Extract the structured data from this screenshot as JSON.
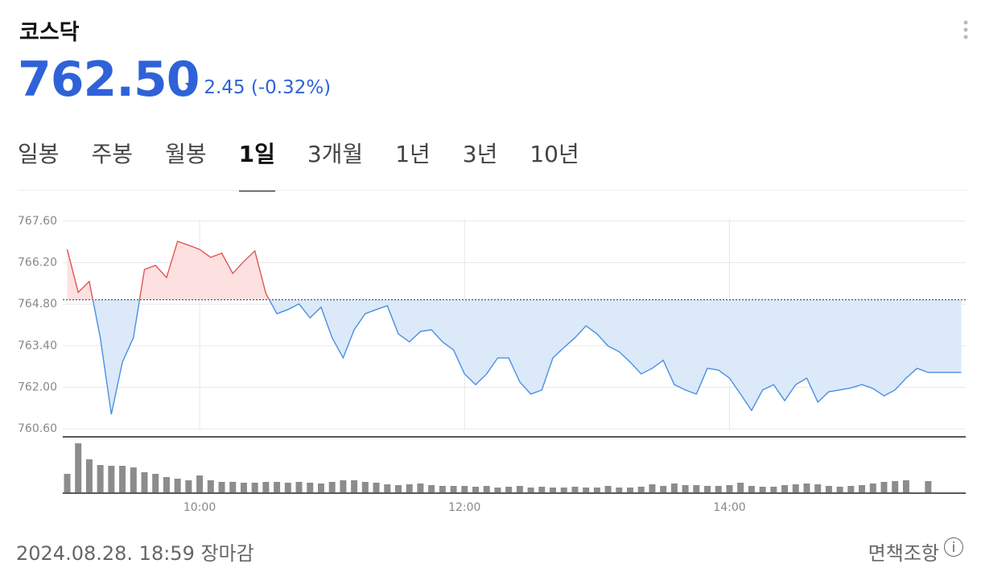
{
  "header": {
    "title": "코스닥",
    "price": "762.50",
    "change": "2.45",
    "change_pct": "(-0.32%)"
  },
  "tabs": [
    "일봉",
    "주봉",
    "월봉",
    "1일",
    "3개월",
    "1년",
    "3년",
    "10년"
  ],
  "active_tab": 3,
  "chart_data": {
    "type": "line",
    "x": [
      540,
      545,
      550,
      555,
      560,
      565,
      570,
      575,
      580,
      585,
      590,
      595,
      600,
      605,
      610,
      615,
      620,
      625,
      630,
      635,
      640,
      645,
      650,
      655,
      660,
      665,
      670,
      675,
      680,
      685,
      690,
      695,
      700,
      705,
      710,
      715,
      720,
      725,
      730,
      735,
      740,
      745,
      750,
      755,
      760,
      765,
      770,
      775,
      780,
      785,
      790,
      795,
      800,
      805,
      810,
      815,
      820,
      825,
      830,
      835,
      840,
      845,
      850,
      855,
      860,
      865,
      870,
      875,
      880,
      885,
      890,
      895,
      900,
      905,
      910,
      915,
      920,
      925,
      930,
      935,
      945
    ],
    "series": [
      {
        "name": "price",
        "color": "#4a90e2",
        "up_color": "#e05555",
        "values": [
          766.65,
          765.2,
          765.57,
          763.67,
          761.09,
          762.85,
          763.67,
          765.97,
          766.11,
          765.7,
          766.92,
          766.79,
          766.65,
          766.38,
          766.52,
          765.84,
          766.24,
          766.6,
          765.16,
          764.48,
          764.62,
          764.81,
          764.34,
          764.7,
          763.67,
          762.99,
          763.94,
          764.48,
          764.62,
          764.75,
          763.8,
          763.53,
          763.88,
          763.94,
          763.53,
          763.26,
          762.45,
          762.09,
          762.45,
          762.99,
          762.99,
          762.18,
          761.77,
          761.91,
          762.99,
          763.34,
          763.67,
          764.07,
          763.8,
          763.39,
          763.2,
          762.85,
          762.45,
          762.64,
          762.91,
          762.09,
          761.91,
          761.77,
          762.64,
          762.58,
          762.31,
          761.77,
          761.22,
          761.91,
          762.09,
          761.55,
          762.09,
          762.31,
          761.5,
          761.85,
          761.91,
          761.98,
          762.09,
          761.96,
          761.71,
          761.91,
          762.31,
          762.64,
          762.5,
          762.5,
          762.5
        ]
      },
      {
        "name": "volume",
        "color": "#8c8c8c",
        "values": [
          23,
          61,
          41,
          34,
          33,
          33,
          31,
          25,
          23,
          19,
          17,
          15,
          21,
          15,
          13,
          13,
          12,
          12,
          13,
          13,
          12,
          13,
          12,
          11,
          13,
          15,
          15,
          13,
          12,
          10,
          9,
          10,
          11,
          9,
          8,
          8,
          8,
          7,
          8,
          6,
          7,
          8,
          6,
          7,
          6,
          6,
          7,
          6,
          6,
          8,
          6,
          6,
          7,
          10,
          8,
          11,
          9,
          9,
          8,
          8,
          9,
          12,
          8,
          7,
          7,
          9,
          10,
          11,
          10,
          8,
          7,
          8,
          9,
          11,
          13,
          14,
          15,
          null,
          14,
          null,
          null
        ]
      }
    ],
    "baseline": 764.95,
    "xlim": [
      538,
      947
    ],
    "xticks": [
      {
        "value": 600,
        "label": "10:00"
      },
      {
        "value": 720,
        "label": "12:00"
      },
      {
        "value": 840,
        "label": "14:00"
      }
    ],
    "ylim": [
      760.33,
      767.95
    ],
    "yticks": [
      {
        "value": 767.6,
        "label": "767.60"
      },
      {
        "value": 766.2,
        "label": "766.20"
      },
      {
        "value": 764.8,
        "label": "764.80"
      },
      {
        "value": 763.4,
        "label": "763.40"
      },
      {
        "value": 762,
        "label": "762.00"
      },
      {
        "value": 760.6,
        "label": "760.60"
      }
    ],
    "grid": true
  },
  "footer": {
    "timestamp": "2024.08.28. 18:59 장마감",
    "disclaimer": "면책조항"
  }
}
